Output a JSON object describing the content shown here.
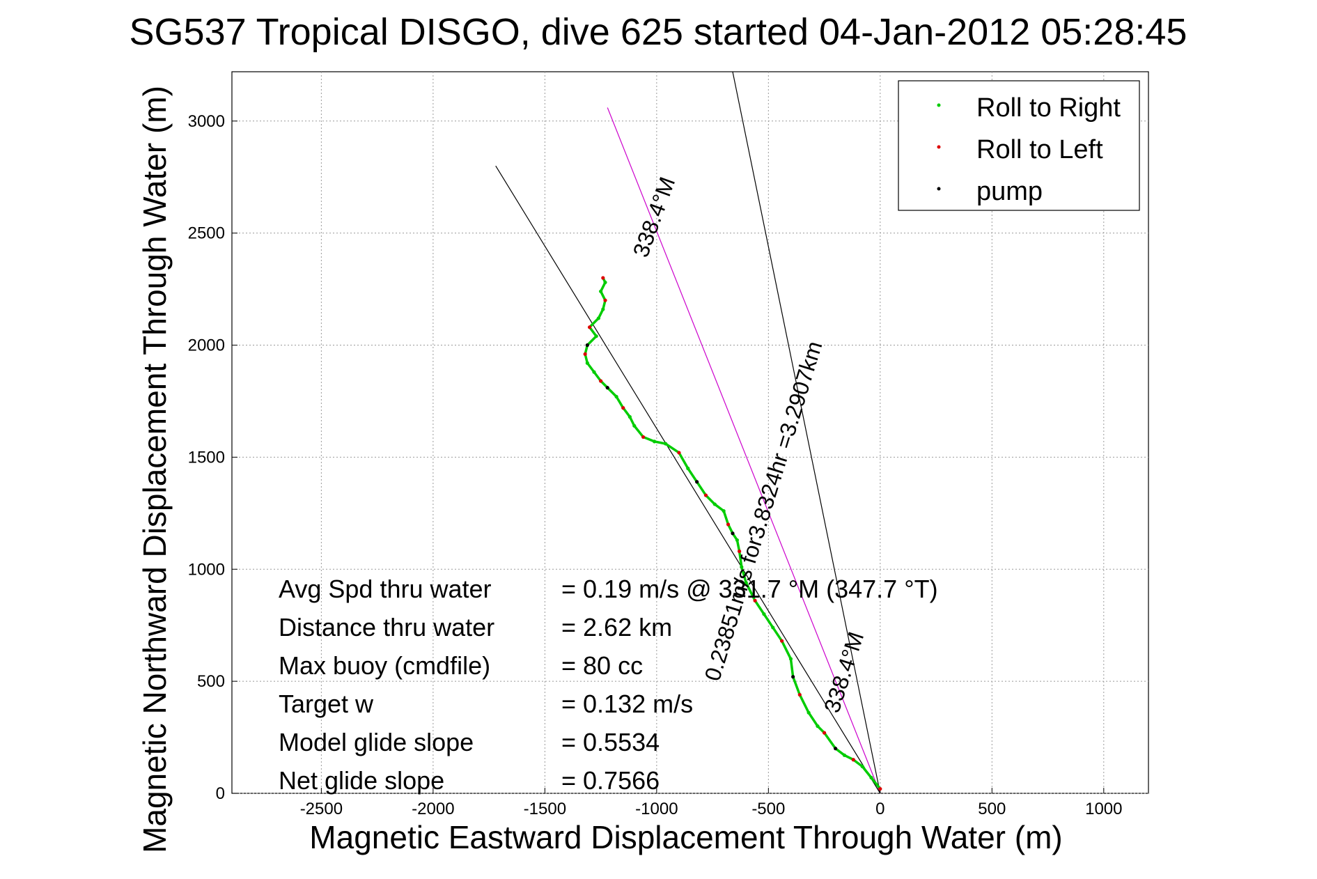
{
  "chart_data": {
    "type": "scatter",
    "title": "SG537 Tropical DISGO, dive 625 started 04-Jan-2012 05:28:45",
    "xlabel": "Magnetic Eastward Displacement Through Water (m)",
    "ylabel": "Magnetic Northward Displacement Through Water (m)",
    "xlim": [
      -2900,
      1200
    ],
    "ylim": [
      0,
      3220
    ],
    "xticks": [
      "-2500",
      "-2000",
      "-1500",
      "-1000",
      "-500",
      "0",
      "500",
      "1000"
    ],
    "yticks": [
      "0",
      "500",
      "1000",
      "1500",
      "2000",
      "2500",
      "3000"
    ],
    "grid": true,
    "legend_position": "top-right",
    "legend": [
      {
        "label": "Roll to Right",
        "color": "#00cc00"
      },
      {
        "label": "Roll to Left",
        "color": "#dd0000"
      },
      {
        "label": "pump",
        "color": "#000000"
      }
    ],
    "track": [
      [
        0,
        20
      ],
      [
        -40,
        70
      ],
      [
        -80,
        120
      ],
      [
        -120,
        150
      ],
      [
        -160,
        170
      ],
      [
        -200,
        200
      ],
      [
        -250,
        270
      ],
      [
        -280,
        300
      ],
      [
        -320,
        360
      ],
      [
        -360,
        440
      ],
      [
        -390,
        520
      ],
      [
        -400,
        600
      ],
      [
        -440,
        680
      ],
      [
        -480,
        740
      ],
      [
        -520,
        800
      ],
      [
        -560,
        860
      ],
      [
        -600,
        940
      ],
      [
        -620,
        1010
      ],
      [
        -630,
        1080
      ],
      [
        -640,
        1130
      ],
      [
        -660,
        1160
      ],
      [
        -680,
        1200
      ],
      [
        -700,
        1260
      ],
      [
        -740,
        1290
      ],
      [
        -780,
        1330
      ],
      [
        -820,
        1390
      ],
      [
        -860,
        1450
      ],
      [
        -900,
        1520
      ],
      [
        -960,
        1560
      ],
      [
        -1010,
        1570
      ],
      [
        -1060,
        1590
      ],
      [
        -1100,
        1640
      ],
      [
        -1120,
        1680
      ],
      [
        -1150,
        1720
      ],
      [
        -1180,
        1770
      ],
      [
        -1220,
        1810
      ],
      [
        -1250,
        1840
      ],
      [
        -1280,
        1880
      ],
      [
        -1310,
        1920
      ],
      [
        -1320,
        1960
      ],
      [
        -1310,
        2000
      ],
      [
        -1270,
        2040
      ],
      [
        -1300,
        2080
      ],
      [
        -1260,
        2120
      ],
      [
        -1240,
        2160
      ],
      [
        -1230,
        2200
      ],
      [
        -1250,
        2240
      ],
      [
        -1230,
        2280
      ],
      [
        -1240,
        2300
      ]
    ],
    "reference_lines": [
      {
        "name": "heading_338.4",
        "color": "#cc00cc",
        "from": [
          0,
          0
        ],
        "to": [
          -1220,
          3060
        ]
      },
      {
        "name": "net_track",
        "color": "#000000",
        "from": [
          0,
          0
        ],
        "to": [
          -1720,
          2800
        ]
      },
      {
        "name": "current",
        "color": "#000000",
        "from": [
          0,
          0
        ],
        "to": [
          -660,
          3220
        ]
      }
    ],
    "annotations": [
      {
        "text": "338.4°M",
        "at": [
          -980,
          2560
        ],
        "rotate": -70
      },
      {
        "text": "0.23851m/s for3.8324hr =3.2907km",
        "at": [
          -490,
          1250
        ],
        "rotate": -73
      },
      {
        "text": "338.4°M",
        "at": [
          -130,
          530
        ],
        "rotate": -72
      }
    ],
    "stats": [
      {
        "label": "Avg Spd thru water",
        "value": "=  0.19 m/s @ 331.7 °M (347.7 °T)"
      },
      {
        "label": "Distance thru water",
        "value": "=  2.62 km"
      },
      {
        "label": "Max buoy (cmdfile)",
        "value": "= 80 cc"
      },
      {
        "label": "Target w",
        "value": "= 0.132 m/s"
      },
      {
        "label": "Model glide slope",
        "value": "= 0.5534"
      },
      {
        "label": "Net glide slope",
        "value": "= 0.7566"
      }
    ]
  }
}
